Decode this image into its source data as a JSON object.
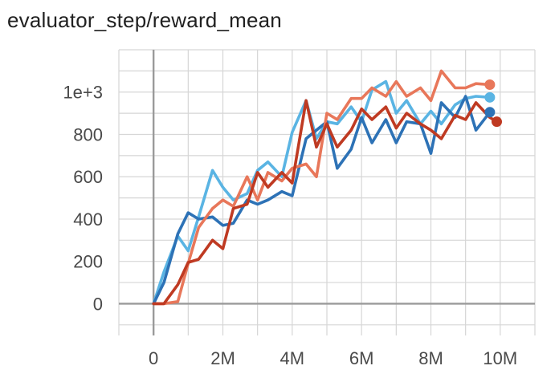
{
  "chart_data": {
    "type": "line",
    "title": "evaluator_step/reward_mean",
    "xlabel": "",
    "ylabel": "",
    "xlim": [
      -1000000,
      11000000
    ],
    "ylim": [
      -150,
      1200
    ],
    "x_ticks": [
      0,
      2000000,
      4000000,
      6000000,
      8000000,
      10000000
    ],
    "x_tick_labels": [
      "0",
      "2M",
      "4M",
      "6M",
      "8M",
      "10M"
    ],
    "y_ticks": [
      0,
      200,
      400,
      600,
      800,
      1000
    ],
    "y_tick_labels": [
      "0",
      "200",
      "400",
      "600",
      "800",
      "1e+3"
    ],
    "grid": true,
    "legend": "none",
    "series": [
      {
        "color": "#5ab4e3",
        "x": [
          0,
          300000,
          700000,
          1000000,
          1300000,
          1700000,
          2000000,
          2300000,
          2700000,
          3000000,
          3300000,
          3700000,
          4000000,
          4400000,
          4700000,
          5000000,
          5300000,
          5700000,
          6000000,
          6300000,
          6700000,
          7000000,
          7300000,
          7700000,
          8000000,
          8300000,
          8700000,
          9000000,
          9300000,
          9700000
        ],
        "y": [
          0,
          150,
          320,
          250,
          410,
          630,
          550,
          490,
          520,
          630,
          670,
          600,
          810,
          960,
          780,
          860,
          850,
          930,
          860,
          1010,
          1050,
          900,
          960,
          850,
          910,
          850,
          940,
          970,
          980,
          975
        ]
      },
      {
        "color": "#2d72b6",
        "x": [
          0,
          300000,
          700000,
          1000000,
          1300000,
          1700000,
          2000000,
          2300000,
          2700000,
          3000000,
          3300000,
          3700000,
          4000000,
          4400000,
          4700000,
          5000000,
          5300000,
          5700000,
          6000000,
          6300000,
          6700000,
          7000000,
          7300000,
          7700000,
          8000000,
          8300000,
          8700000,
          9000000,
          9300000,
          9700000
        ],
        "y": [
          0,
          100,
          330,
          430,
          400,
          410,
          370,
          380,
          490,
          470,
          490,
          530,
          510,
          780,
          820,
          860,
          640,
          730,
          880,
          760,
          870,
          760,
          860,
          850,
          710,
          950,
          880,
          980,
          820,
          905
        ]
      },
      {
        "color": "#e8775a",
        "x": [
          0,
          300000,
          700000,
          1000000,
          1300000,
          1700000,
          2000000,
          2300000,
          2700000,
          3000000,
          3300000,
          3700000,
          4000000,
          4400000,
          4700000,
          5000000,
          5300000,
          5700000,
          6000000,
          6300000,
          6700000,
          7000000,
          7300000,
          7700000,
          8000000,
          8300000,
          8700000,
          9000000,
          9300000,
          9700000
        ],
        "y": [
          0,
          0,
          10,
          190,
          360,
          450,
          490,
          460,
          600,
          490,
          620,
          580,
          640,
          660,
          600,
          900,
          870,
          970,
          970,
          1020,
          980,
          1050,
          980,
          1020,
          960,
          1100,
          1020,
          1020,
          1040,
          1035
        ]
      },
      {
        "color": "#bf3a22",
        "x": [
          0,
          300000,
          700000,
          1000000,
          1300000,
          1700000,
          2000000,
          2300000,
          2700000,
          3000000,
          3300000,
          3700000,
          4000000,
          4400000,
          4700000,
          5000000,
          5300000,
          5700000,
          6000000,
          6300000,
          6700000,
          7000000,
          7300000,
          7700000,
          8000000,
          8300000,
          8700000,
          9000000,
          9300000,
          9700000,
          9900000
        ],
        "y": [
          0,
          0,
          90,
          195,
          210,
          300,
          260,
          450,
          470,
          620,
          550,
          620,
          570,
          960,
          740,
          850,
          740,
          820,
          920,
          870,
          930,
          830,
          900,
          850,
          820,
          780,
          890,
          870,
          950,
          880,
          860
        ]
      }
    ]
  }
}
